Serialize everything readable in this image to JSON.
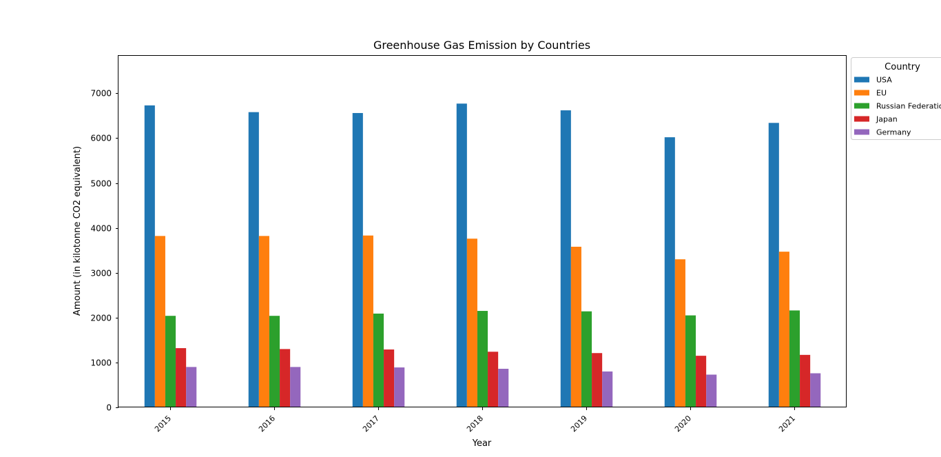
{
  "chart_data": {
    "type": "bar",
    "title": "Greenhouse Gas Emission by Countries",
    "xlabel": "Year",
    "ylabel": "Amount (in kilotonne CO2 equivalent)",
    "categories": [
      "2015",
      "2016",
      "2017",
      "2018",
      "2019",
      "2020",
      "2021"
    ],
    "ylim": [
      0,
      7850
    ],
    "yticks": [
      0,
      1000,
      2000,
      3000,
      4000,
      5000,
      6000,
      7000
    ],
    "legend_title": "Country",
    "legend_position": "outside-top-right",
    "grid": false,
    "series": [
      {
        "name": "USA",
        "color": "#1f77b4",
        "values": [
          6730,
          6580,
          6560,
          6770,
          6620,
          6020,
          6340
        ]
      },
      {
        "name": "EU",
        "color": "#ff7f0e",
        "values": [
          3820,
          3820,
          3830,
          3760,
          3580,
          3300,
          3470
        ]
      },
      {
        "name": "Russian Federation",
        "color": "#2ca02c",
        "values": [
          2040,
          2040,
          2090,
          2150,
          2140,
          2050,
          2160
        ]
      },
      {
        "name": "Japan",
        "color": "#d62728",
        "values": [
          1320,
          1300,
          1290,
          1240,
          1210,
          1150,
          1170
        ]
      },
      {
        "name": "Germany",
        "color": "#9467bd",
        "values": [
          900,
          900,
          890,
          860,
          800,
          730,
          760
        ]
      }
    ]
  }
}
